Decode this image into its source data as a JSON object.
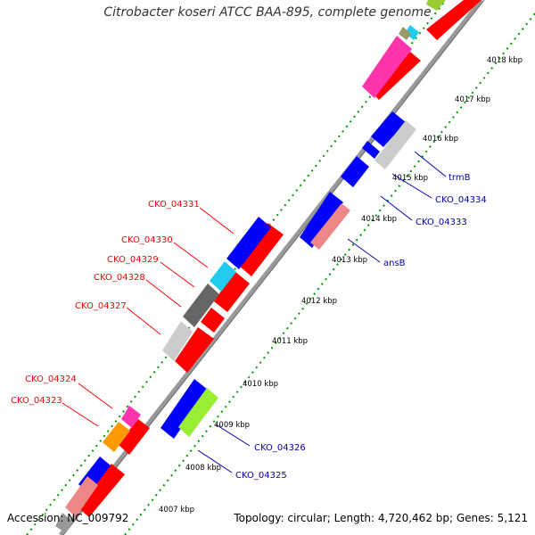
{
  "title": "Citrobacter koseri ATCC BAA-895, complete genome",
  "footer": {
    "accession": "Accession: NC_009792",
    "topology": "Topology: circular; Length: 4,720,462 bp; Genes: 5,121"
  },
  "ticks": [
    "4007 kbp",
    "4008 kbp",
    "4009 kbp",
    "4010 kbp",
    "4011 kbp",
    "4012 kbp",
    "4013 kbp",
    "4014 kbp",
    "4015 kbp",
    "4016 kbp",
    "4017 kbp",
    "4018 kbp"
  ],
  "forward_labels": [
    "CKO_04331",
    "CKO_04330",
    "CKO_04329",
    "CKO_04328",
    "CKO_04327",
    "CKO_04324",
    "CKO_04323"
  ],
  "reverse_labels": [
    "trmB",
    "CKO_04334",
    "CKO_04333",
    "ansB",
    "CKO_04326",
    "CKO_04325"
  ],
  "colors": {
    "forward_gene": "#ff0000",
    "reverse_gene": "#0000ff",
    "backbone": "#888888",
    "tick": "#008800",
    "forward_label": "#ff0000",
    "reverse_label": "#0000aa"
  }
}
